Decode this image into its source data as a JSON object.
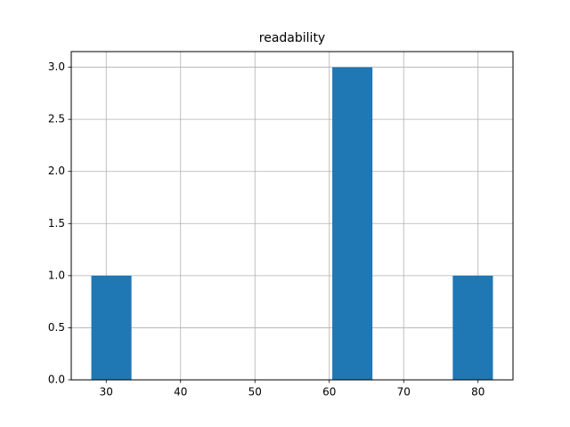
{
  "chart_data": {
    "type": "histogram",
    "title": "readability",
    "bins": [
      28,
      33.4,
      38.8,
      44.2,
      49.6,
      55,
      60.4,
      65.8,
      71.2,
      76.6,
      82
    ],
    "counts": [
      1,
      0,
      0,
      0,
      0,
      0,
      3,
      0,
      0,
      1
    ],
    "color": "#1f77b4",
    "xlim": [
      25.3,
      84.7
    ],
    "xticks": [
      30,
      40,
      50,
      60,
      70,
      80
    ],
    "ylim": [
      0,
      3.15
    ],
    "yticks": [
      {
        "value": 0,
        "label": "0.0"
      },
      {
        "value": 0.5,
        "label": "0.5"
      },
      {
        "value": 1,
        "label": "1.0"
      },
      {
        "value": 1.5,
        "label": "1.5"
      },
      {
        "value": 2,
        "label": "2.0"
      },
      {
        "value": 2.5,
        "label": "2.5"
      },
      {
        "value": 3,
        "label": "3.0"
      }
    ],
    "grid": true
  }
}
